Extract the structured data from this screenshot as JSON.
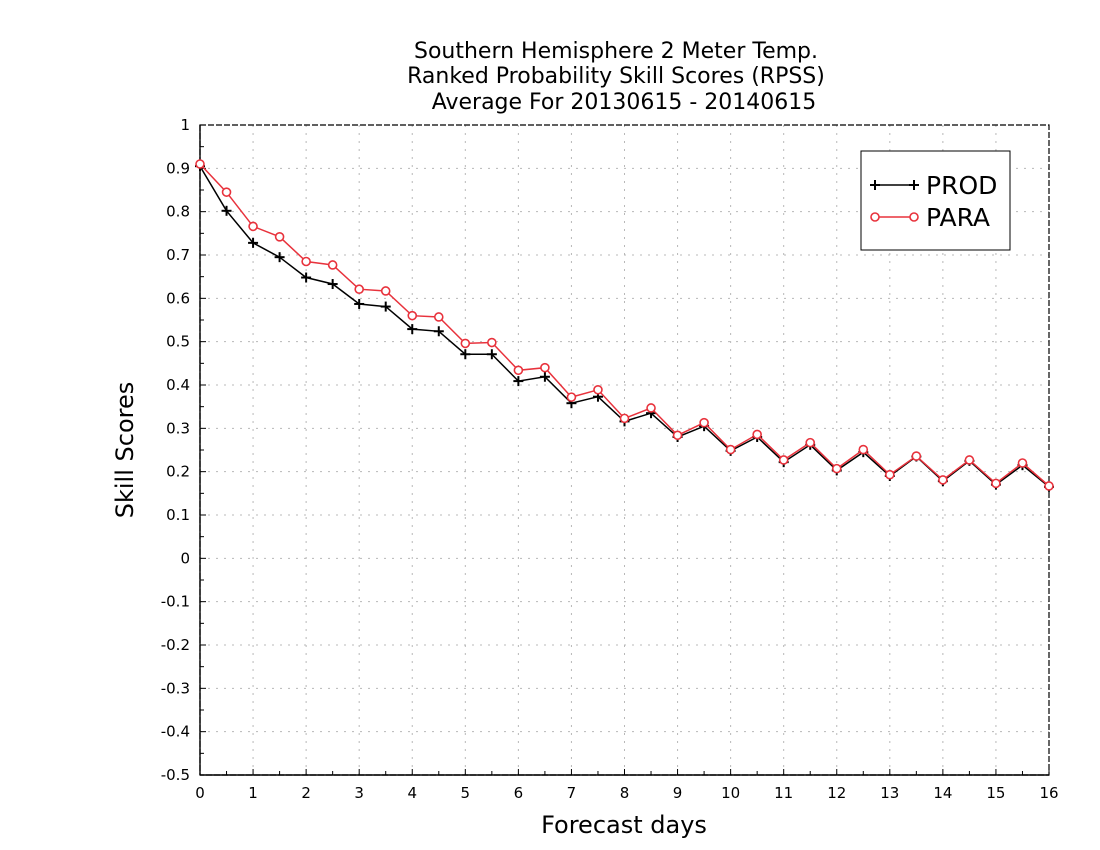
{
  "chart_data": {
    "type": "line",
    "title_lines": [
      "Southern Hemisphere 2 Meter Temp.",
      "Ranked Probability Skill Scores (RPSS)",
      "Average For 20130615 - 20140615"
    ],
    "xlabel": "Forecast days",
    "ylabel": "Skill Scores",
    "xlim": [
      0,
      16
    ],
    "ylim": [
      -0.5,
      1
    ],
    "x_ticks": [
      0,
      1,
      2,
      3,
      4,
      5,
      6,
      7,
      8,
      9,
      10,
      11,
      12,
      13,
      14,
      15,
      16
    ],
    "y_ticks": [
      -0.5,
      -0.4,
      -0.3,
      -0.2,
      -0.1,
      0,
      0.1,
      0.2,
      0.3,
      0.4,
      0.5,
      0.6,
      0.7,
      0.8,
      0.9,
      1
    ],
    "y_tick_labels": [
      "-0.5",
      "-0.4",
      "-0.3",
      "-0.2",
      "-0.1",
      "0",
      "0.1",
      "0.2",
      "0.3",
      "0.4",
      "0.5",
      "0.6",
      "0.7",
      "0.8",
      "0.9",
      "1"
    ],
    "grid": true,
    "legend_position": "top-right",
    "x": [
      0,
      0.5,
      1,
      1.5,
      2,
      2.5,
      3,
      3.5,
      4,
      4.5,
      5,
      5.5,
      6,
      6.5,
      7,
      7.5,
      8,
      8.5,
      9,
      9.5,
      10,
      10.5,
      11,
      11.5,
      12,
      12.5,
      13,
      13.5,
      14,
      14.5,
      15,
      15.5,
      16
    ],
    "series": [
      {
        "name": "PROD",
        "color": "#000000",
        "marker": "plus",
        "values": [
          0.905,
          0.802,
          0.728,
          0.695,
          0.648,
          0.633,
          0.587,
          0.581,
          0.529,
          0.524,
          0.471,
          0.471,
          0.409,
          0.419,
          0.358,
          0.373,
          0.316,
          0.335,
          0.28,
          0.305,
          0.248,
          0.28,
          0.222,
          0.262,
          0.203,
          0.245,
          0.19,
          0.235,
          0.178,
          0.225,
          0.17,
          0.215,
          0.165
        ]
      },
      {
        "name": "PARA",
        "color": "#e8323c",
        "marker": "circle",
        "values": [
          0.91,
          0.845,
          0.766,
          0.742,
          0.685,
          0.677,
          0.621,
          0.617,
          0.56,
          0.557,
          0.496,
          0.498,
          0.434,
          0.44,
          0.372,
          0.389,
          0.323,
          0.347,
          0.284,
          0.313,
          0.251,
          0.286,
          0.227,
          0.267,
          0.207,
          0.251,
          0.193,
          0.236,
          0.181,
          0.227,
          0.173,
          0.22,
          0.167
        ]
      }
    ]
  }
}
